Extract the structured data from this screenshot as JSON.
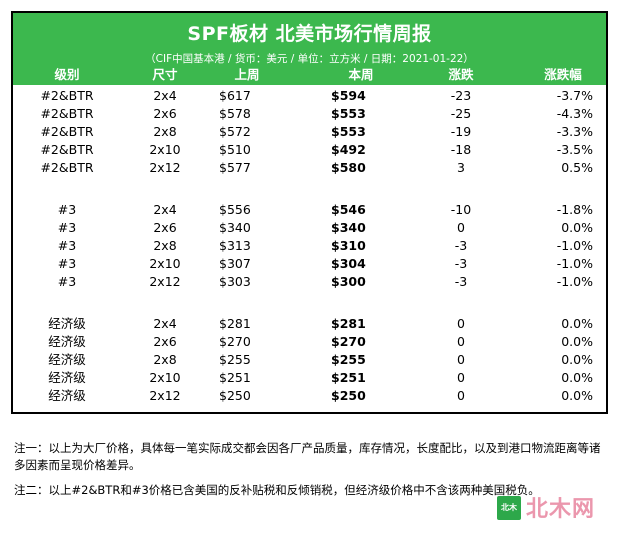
{
  "header": {
    "title": "SPF板材 北美市场行情周报",
    "subtitle": "（CIF中国基本港 / 货币：美元 / 单位：立方米 / 日期：2021-01-22）"
  },
  "columns": {
    "grade": "级别",
    "size": "尺寸",
    "prev_week": "上周",
    "this_week": "本周",
    "change": "涨跌",
    "change_pct": "涨跌幅"
  },
  "groups": [
    {
      "rows": [
        {
          "grade": "#2&BTR",
          "size": "2x4",
          "prev": "$617",
          "cur": "$594",
          "chg": "-23",
          "pct": "-3.7%"
        },
        {
          "grade": "#2&BTR",
          "size": "2x6",
          "prev": "$578",
          "cur": "$553",
          "chg": "-25",
          "pct": "-4.3%"
        },
        {
          "grade": "#2&BTR",
          "size": "2x8",
          "prev": "$572",
          "cur": "$553",
          "chg": "-19",
          "pct": "-3.3%"
        },
        {
          "grade": "#2&BTR",
          "size": "2x10",
          "prev": "$510",
          "cur": "$492",
          "chg": "-18",
          "pct": "-3.5%"
        },
        {
          "grade": "#2&BTR",
          "size": "2x12",
          "prev": "$577",
          "cur": "$580",
          "chg": "3",
          "pct": "0.5%"
        }
      ]
    },
    {
      "rows": [
        {
          "grade": "#3",
          "size": "2x4",
          "prev": "$556",
          "cur": "$546",
          "chg": "-10",
          "pct": "-1.8%"
        },
        {
          "grade": "#3",
          "size": "2x6",
          "prev": "$340",
          "cur": "$340",
          "chg": "0",
          "pct": "0.0%"
        },
        {
          "grade": "#3",
          "size": "2x8",
          "prev": "$313",
          "cur": "$310",
          "chg": "-3",
          "pct": "-1.0%"
        },
        {
          "grade": "#3",
          "size": "2x10",
          "prev": "$307",
          "cur": "$304",
          "chg": "-3",
          "pct": "-1.0%"
        },
        {
          "grade": "#3",
          "size": "2x12",
          "prev": "$303",
          "cur": "$300",
          "chg": "-3",
          "pct": "-1.0%"
        }
      ]
    },
    {
      "rows": [
        {
          "grade": "经济级",
          "size": "2x4",
          "prev": "$281",
          "cur": "$281",
          "chg": "0",
          "pct": "0.0%"
        },
        {
          "grade": "经济级",
          "size": "2x6",
          "prev": "$270",
          "cur": "$270",
          "chg": "0",
          "pct": "0.0%"
        },
        {
          "grade": "经济级",
          "size": "2x8",
          "prev": "$255",
          "cur": "$255",
          "chg": "0",
          "pct": "0.0%"
        },
        {
          "grade": "经济级",
          "size": "2x10",
          "prev": "$251",
          "cur": "$251",
          "chg": "0",
          "pct": "0.0%"
        },
        {
          "grade": "经济级",
          "size": "2x12",
          "prev": "$250",
          "cur": "$250",
          "chg": "0",
          "pct": "0.0%"
        }
      ]
    }
  ],
  "notes": {
    "note1": "注一：以上为大厂价格，具体每一笔实际成交都会因各厂产品质量，库存情况，长度配比，以及到港口物流距离等诸多因素而呈现价格差异。",
    "note2": "注二：以上#2&BTR和#3价格已含美国的反补贴税和反倾销税，但经济级价格中不含该两种美国税负。"
  },
  "brand": {
    "logo_text": "北木",
    "watermark_text": "北木网",
    "header_color": "#3cb84e"
  }
}
